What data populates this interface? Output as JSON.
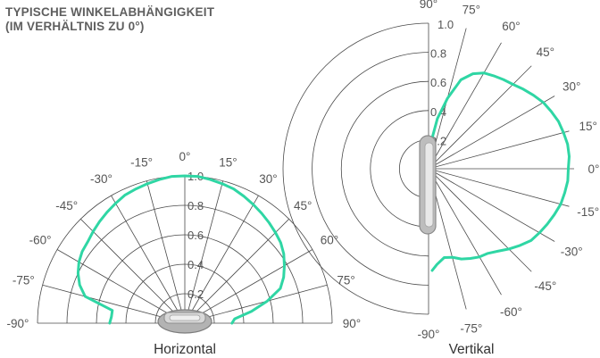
{
  "header": {
    "line1": "TYPISCHE WINKELABHÄNGIGKEIT",
    "line2": "(IM VERHÄLTNIS ZU 0°)"
  },
  "colors": {
    "curve": "#2fd6a4",
    "grid": "#4a4a4a",
    "device": "#9a9a9a"
  },
  "chart_data": [
    {
      "type": "polar-line",
      "caption": "Horizontal",
      "coordinate": "polar",
      "angle_range_deg": [
        -90,
        90
      ],
      "angle_ticks": [
        "-90°",
        "-75°",
        "-60°",
        "-45°",
        "-30°",
        "-15°",
        "0°",
        "15°",
        "30°",
        "45°",
        "60°",
        "75°",
        "90°"
      ],
      "radial_ticks": [
        "0.2",
        "0.4",
        "0.6",
        "0.8",
        "1.0"
      ],
      "rlim": [
        0,
        1.0
      ],
      "series": [
        {
          "angle_deg": [
            -90,
            -85,
            -80,
            -75,
            -70,
            -65,
            -60,
            -55,
            -50,
            -45,
            -40,
            -35,
            -30,
            -25,
            -20,
            -15,
            -10,
            -5,
            0,
            5,
            10,
            15,
            20,
            25,
            30,
            35,
            40,
            45,
            50,
            55,
            60,
            65,
            70,
            75,
            80,
            85,
            90
          ],
          "value": [
            0.51,
            0.5,
            0.5,
            0.7,
            0.76,
            0.8,
            0.83,
            0.85,
            0.86,
            0.88,
            0.9,
            0.92,
            0.94,
            0.96,
            0.97,
            0.98,
            0.99,
            1.0,
            1.0,
            1.0,
            0.99,
            0.98,
            0.97,
            0.95,
            0.93,
            0.91,
            0.89,
            0.87,
            0.85,
            0.82,
            0.78,
            0.74,
            0.69,
            0.58,
            0.46,
            0.34,
            0.32
          ]
        }
      ]
    },
    {
      "type": "polar-line",
      "caption": "Vertikal",
      "coordinate": "polar",
      "angle_range_deg": [
        -90,
        90
      ],
      "angle_ticks": [
        "-90°",
        "-75°",
        "-60°",
        "-45°",
        "-30°",
        "-15°",
        "0°",
        "15°",
        "30°",
        "45°",
        "60°",
        "75°",
        "90°"
      ],
      "radial_ticks": [
        "0.2",
        "0.4",
        "0.6",
        "0.8",
        "1.0"
      ],
      "rlim": [
        0,
        1.0
      ],
      "series": [
        {
          "angle_deg": [
            90,
            85,
            80,
            75,
            70,
            65,
            60,
            55,
            50,
            45,
            40,
            35,
            30,
            25,
            20,
            15,
            10,
            5,
            0,
            -5,
            -10,
            -15,
            -20,
            -25,
            -30,
            -35,
            -40,
            -45,
            -50,
            -55,
            -60,
            -65,
            -70,
            -75,
            -80,
            -85,
            -88
          ],
          "value": [
            0.1,
            0.18,
            0.35,
            0.5,
            0.65,
            0.72,
            0.76,
            0.78,
            0.8,
            0.82,
            0.85,
            0.88,
            0.91,
            0.93,
            0.95,
            0.96,
            0.97,
            0.97,
            0.96,
            0.96,
            0.95,
            0.94,
            0.92,
            0.9,
            0.88,
            0.86,
            0.82,
            0.78,
            0.74,
            0.71,
            0.7,
            0.68,
            0.66,
            0.63,
            0.62,
            0.66,
            0.7
          ]
        }
      ]
    }
  ]
}
